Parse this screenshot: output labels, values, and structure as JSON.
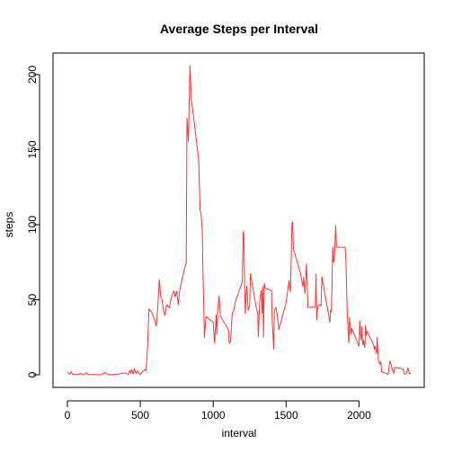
{
  "chart_data": {
    "type": "line",
    "title": "Average Steps per Interval",
    "xlabel": "interval",
    "ylabel": "steps",
    "xlim": [
      0,
      2355
    ],
    "ylim": [
      0,
      206
    ],
    "xticks": [
      0,
      500,
      1000,
      1500,
      2000
    ],
    "yticks": [
      0,
      50,
      100,
      150,
      200
    ],
    "grid": false,
    "line_color": "#ff3333",
    "series": [
      {
        "x": [
          0,
          15,
          25,
          35,
          45,
          55,
          65,
          75,
          90,
          105,
          120,
          130,
          140,
          150,
          200,
          230,
          240,
          255,
          275,
          300,
          330,
          340,
          360,
          380,
          400,
          420,
          425,
          430,
          435,
          440,
          450,
          460,
          470,
          480,
          490,
          500,
          515,
          525,
          530,
          540,
          550,
          560,
          570,
          580,
          600,
          610,
          620,
          630,
          640,
          650,
          660,
          670,
          680,
          700,
          710,
          720,
          730,
          740,
          750,
          760,
          770,
          780,
          800,
          815,
          820,
          830,
          835,
          840,
          845,
          850,
          855,
          900,
          910,
          915,
          920,
          925,
          930,
          935,
          940,
          950,
          1000,
          1010,
          1020,
          1025,
          1030,
          1040,
          1050,
          1100,
          1105,
          1110,
          1115,
          1120,
          1130,
          1140,
          1150,
          1200,
          1205,
          1210,
          1215,
          1220,
          1230,
          1240,
          1250,
          1255,
          1300,
          1305,
          1310,
          1315,
          1320,
          1330,
          1335,
          1340,
          1345,
          1350,
          1355,
          1400,
          1405,
          1410,
          1415,
          1420,
          1430,
          1440,
          1450,
          1500,
          1520,
          1530,
          1540,
          1545,
          1550,
          1600,
          1610,
          1615,
          1620,
          1630,
          1640,
          1650,
          1700,
          1705,
          1710,
          1715,
          1720,
          1730,
          1740,
          1745,
          1800,
          1805,
          1810,
          1815,
          1820,
          1825,
          1830,
          1840,
          1845,
          1850,
          1900,
          1905,
          1910,
          1915,
          1920,
          1930,
          1935,
          1940,
          1945,
          1950,
          2000,
          2005,
          2010,
          2015,
          2020,
          2025,
          2030,
          2035,
          2040,
          2045,
          2050,
          2055,
          2100,
          2105,
          2110,
          2115,
          2120,
          2125,
          2130,
          2135,
          2140,
          2145,
          2150,
          2155,
          2200,
          2205,
          2210,
          2215,
          2220,
          2225,
          2230,
          2235,
          2240,
          2245,
          2300,
          2305,
          2310,
          2315,
          2320,
          2325,
          2330,
          2335,
          2340,
          2345,
          2355
        ],
        "values": [
          1.7,
          0.3,
          2.1,
          0.3,
          0.4,
          0.2,
          0.1,
          0.3,
          0.9,
          0.1,
          0.5,
          1.5,
          0.3,
          0.2,
          0.2,
          0.0,
          0.5,
          1.5,
          0.4,
          0.0,
          0.3,
          0.4,
          0.6,
          1.1,
          1.2,
          0.0,
          2.8,
          2.6,
          0.9,
          3.4,
          0.5,
          4.1,
          0.9,
          2.5,
          1.2,
          0.0,
          1.9,
          3.0,
          3.6,
          2.7,
          19.1,
          44.0,
          42.6,
          41.3,
          36.0,
          32.4,
          46.0,
          63.5,
          52.4,
          50.0,
          41.9,
          39.7,
          46.7,
          44.6,
          50.5,
          53.5,
          56.0,
          52.0,
          55.8,
          46.6,
          56.0,
          60.8,
          69.8,
          74.7,
          171.2,
          155.4,
          177.3,
          206.2,
          195.9,
          183.4,
          180.0,
          143.5,
          109.7,
          108.1,
          103.7,
          95.8,
          66.2,
          45.2,
          24.8,
          38.8,
          34.9,
          21.1,
          40.0,
          26.9,
          42.4,
          52.7,
          38.9,
          31.0,
          29.7,
          21.0,
          21.5,
          24.0,
          41.0,
          42.6,
          47.9,
          62.0,
          95.4,
          93.5,
          61.0,
          40.7,
          59.0,
          43.0,
          46.2,
          67.3,
          42.3,
          42.0,
          25.4,
          39.3,
          50.1,
          56.3,
          41.0,
          58.7,
          25.0,
          61.0,
          57.9,
          56.0,
          35.0,
          27.0,
          17.2,
          43.0,
          45.0,
          39.5,
          30.0,
          48.0,
          63.0,
          55.3,
          101.2,
          102.0,
          84.0,
          67.0,
          61.0,
          59.0,
          65.0,
          54.0,
          74.0,
          45.0,
          45.0,
          67.0,
          36.6,
          43.4,
          46.0,
          46.7,
          46.0,
          65.3,
          35.0,
          43.0,
          42.0,
          59.7,
          85.0,
          75.0,
          75.9,
          99.5,
          85.3,
          85.0,
          84.9,
          85.0,
          77.0,
          58.0,
          40.0,
          21.0,
          38.0,
          33.0,
          27.0,
          31.0,
          19.0,
          36.0,
          27.0,
          23.0,
          32.0,
          20.0,
          23.0,
          20.0,
          18.0,
          33.0,
          26.0,
          29.0,
          20.0,
          17.0,
          19.0,
          17.0,
          14.0,
          25.0,
          15.0,
          8.0,
          8.0,
          7.0,
          9.0,
          2.0,
          0.3,
          4.0,
          8.0,
          9.0,
          7.0,
          5.0,
          3.0,
          2.0,
          1.0,
          5.0,
          4.0,
          3.0,
          0.8,
          0.3,
          0.5,
          1.2,
          2.6,
          4.7,
          3.3,
          0.6,
          1.1
        ]
      }
    ]
  }
}
